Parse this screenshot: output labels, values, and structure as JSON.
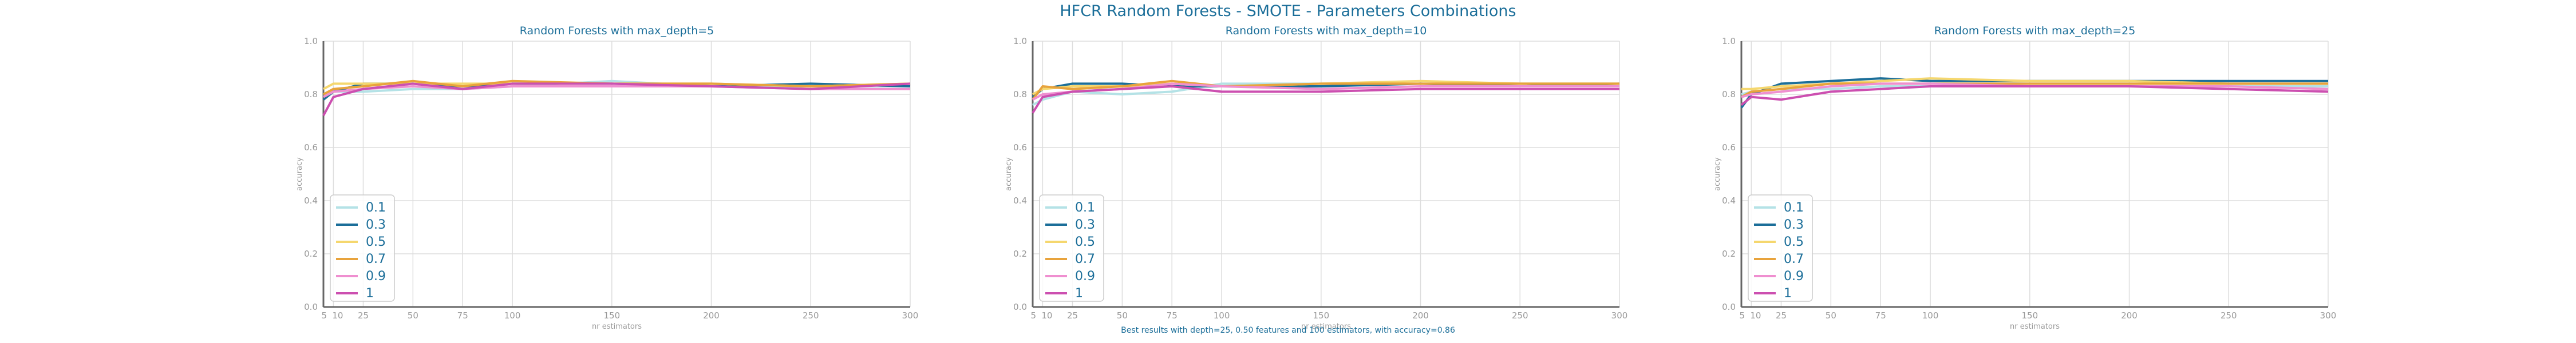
{
  "figure": {
    "title": "HFCR Random Forests - SMOTE - Parameters Combinations",
    "footer": "Best results with depth=25, 0.50 features and 100 estimators, with accuracy=0.86"
  },
  "colors": {
    "0.1": "#b4e2e6",
    "0.3": "#1b6e99",
    "0.5": "#f5d76e",
    "0.7": "#e8a33c",
    "0.9": "#ef8fd0",
    "1": "#cc4fb0",
    "title": "#1b6e99",
    "axis": "#999999",
    "grid": "#dddddd"
  },
  "chart_data": [
    {
      "type": "line",
      "title": "Random Forests with max_depth=5",
      "xlabel": "nr estimators",
      "ylabel": "accuracy",
      "ylim": [
        0,
        1
      ],
      "xlim": [
        5,
        300
      ],
      "xticks": [
        5,
        10,
        25,
        50,
        75,
        100,
        150,
        200,
        250,
        300
      ],
      "yticks": [
        0.0,
        0.2,
        0.4,
        0.6,
        0.8,
        1.0
      ],
      "grid": true,
      "legend_position": "lower-left",
      "x": [
        5,
        10,
        25,
        50,
        75,
        100,
        150,
        200,
        250,
        300
      ],
      "series": [
        {
          "name": "0.1",
          "values": [
            0.8,
            0.81,
            0.81,
            0.82,
            0.82,
            0.83,
            0.85,
            0.83,
            0.83,
            0.83
          ]
        },
        {
          "name": "0.3",
          "values": [
            0.78,
            0.81,
            0.84,
            0.84,
            0.83,
            0.84,
            0.84,
            0.83,
            0.84,
            0.83
          ]
        },
        {
          "name": "0.5",
          "values": [
            0.82,
            0.84,
            0.84,
            0.84,
            0.84,
            0.84,
            0.84,
            0.84,
            0.83,
            0.84
          ]
        },
        {
          "name": "0.7",
          "values": [
            0.8,
            0.82,
            0.83,
            0.85,
            0.83,
            0.85,
            0.84,
            0.84,
            0.83,
            0.84
          ]
        },
        {
          "name": "0.9",
          "values": [
            0.79,
            0.81,
            0.82,
            0.83,
            0.82,
            0.83,
            0.83,
            0.83,
            0.82,
            0.82
          ]
        },
        {
          "name": "1",
          "values": [
            0.72,
            0.79,
            0.82,
            0.84,
            0.82,
            0.84,
            0.84,
            0.83,
            0.82,
            0.84
          ]
        }
      ]
    },
    {
      "type": "line",
      "title": "Random Forests with max_depth=10",
      "xlabel": "nr estimators",
      "ylabel": "accuracy",
      "ylim": [
        0,
        1
      ],
      "xlim": [
        5,
        300
      ],
      "xticks": [
        5,
        10,
        25,
        50,
        75,
        100,
        150,
        200,
        250,
        300
      ],
      "yticks": [
        0.0,
        0.2,
        0.4,
        0.6,
        0.8,
        1.0
      ],
      "grid": true,
      "legend_position": "lower-left",
      "x": [
        5,
        10,
        25,
        50,
        75,
        100,
        150,
        200,
        250,
        300
      ],
      "series": [
        {
          "name": "0.1",
          "values": [
            0.76,
            0.78,
            0.81,
            0.8,
            0.81,
            0.84,
            0.84,
            0.84,
            0.84,
            0.84
          ]
        },
        {
          "name": "0.3",
          "values": [
            0.79,
            0.82,
            0.84,
            0.84,
            0.83,
            0.83,
            0.83,
            0.84,
            0.83,
            0.84
          ]
        },
        {
          "name": "0.5",
          "values": [
            0.8,
            0.82,
            0.83,
            0.83,
            0.84,
            0.83,
            0.84,
            0.85,
            0.84,
            0.84
          ]
        },
        {
          "name": "0.7",
          "values": [
            0.78,
            0.83,
            0.82,
            0.83,
            0.85,
            0.83,
            0.84,
            0.84,
            0.84,
            0.84
          ]
        },
        {
          "name": "0.9",
          "values": [
            0.78,
            0.8,
            0.81,
            0.82,
            0.84,
            0.83,
            0.82,
            0.83,
            0.83,
            0.83
          ]
        },
        {
          "name": "1",
          "values": [
            0.73,
            0.79,
            0.81,
            0.82,
            0.83,
            0.81,
            0.81,
            0.82,
            0.82,
            0.82
          ]
        }
      ]
    },
    {
      "type": "line",
      "title": "Random Forests with max_depth=25",
      "xlabel": "nr estimators",
      "ylabel": "accuracy",
      "ylim": [
        0,
        1
      ],
      "xlim": [
        5,
        300
      ],
      "xticks": [
        5,
        10,
        25,
        50,
        75,
        100,
        150,
        200,
        250,
        300
      ],
      "yticks": [
        0.0,
        0.2,
        0.4,
        0.6,
        0.8,
        1.0
      ],
      "grid": true,
      "legend_position": "lower-left",
      "x": [
        5,
        10,
        25,
        50,
        75,
        100,
        150,
        200,
        250,
        300
      ],
      "series": [
        {
          "name": "0.1",
          "values": [
            0.8,
            0.81,
            0.82,
            0.82,
            0.83,
            0.83,
            0.83,
            0.83,
            0.83,
            0.83
          ]
        },
        {
          "name": "0.3",
          "values": [
            0.75,
            0.8,
            0.84,
            0.85,
            0.86,
            0.85,
            0.85,
            0.85,
            0.85,
            0.85
          ]
        },
        {
          "name": "0.5",
          "values": [
            0.82,
            0.82,
            0.83,
            0.84,
            0.85,
            0.86,
            0.85,
            0.85,
            0.84,
            0.84
          ]
        },
        {
          "name": "0.7",
          "values": [
            0.79,
            0.81,
            0.82,
            0.84,
            0.84,
            0.84,
            0.84,
            0.84,
            0.84,
            0.84
          ]
        },
        {
          "name": "0.9",
          "values": [
            0.79,
            0.8,
            0.81,
            0.83,
            0.84,
            0.84,
            0.83,
            0.83,
            0.83,
            0.82
          ]
        },
        {
          "name": "1",
          "values": [
            0.76,
            0.79,
            0.78,
            0.81,
            0.82,
            0.83,
            0.83,
            0.83,
            0.82,
            0.81
          ]
        }
      ]
    }
  ]
}
